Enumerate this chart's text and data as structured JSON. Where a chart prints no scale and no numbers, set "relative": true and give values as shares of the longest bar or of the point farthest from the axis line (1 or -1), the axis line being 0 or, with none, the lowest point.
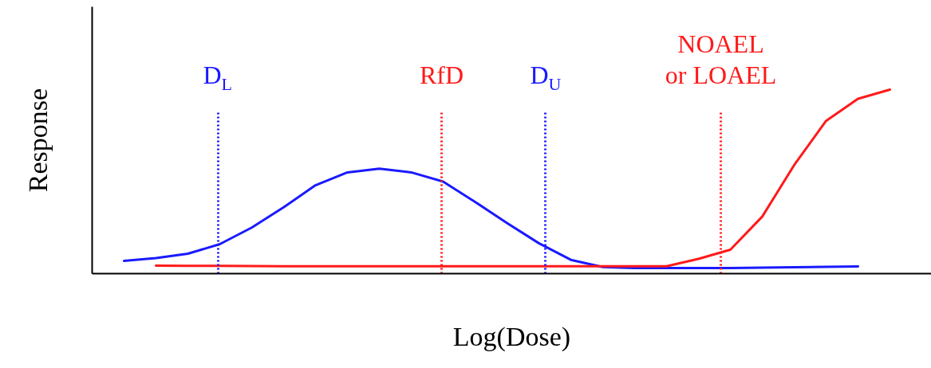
{
  "chart_data": {
    "type": "line",
    "relative": true,
    "xlabel": "Log(Dose)",
    "ylabel": "Response",
    "line_style": "solid",
    "categories": [
      null,
      null,
      null,
      null,
      null,
      null,
      null,
      null,
      null,
      null,
      null,
      null,
      null,
      null,
      null,
      null,
      null,
      null,
      null,
      null,
      null,
      null,
      null,
      null,
      null
    ],
    "series": [
      {
        "color": "#1a1aff",
        "values": [
          0.069,
          0.084,
          0.108,
          0.16,
          0.25,
          0.36,
          0.48,
          0.55,
          0.57,
          0.55,
          0.5,
          0.39,
          0.275,
          0.165,
          0.075,
          0.036,
          0.03,
          0.03,
          0.03,
          0.03,
          0.032,
          0.035,
          0.037,
          0.039,
          null
        ]
      },
      {
        "color": "#ff1a1a",
        "values": [
          null,
          0.043,
          0.042,
          0.042,
          0.041,
          0.04,
          0.04,
          0.04,
          0.04,
          0.04,
          0.04,
          0.04,
          0.04,
          0.04,
          0.04,
          0.04,
          0.04,
          0.04,
          0.08,
          0.13,
          0.31,
          0.59,
          0.83,
          0.95,
          1.0
        ]
      }
    ],
    "annotations": [
      "D$_{L}$",
      "RfD",
      "D$_{U}$",
      "NOAEL\nor LOAEL"
    ]
  }
}
